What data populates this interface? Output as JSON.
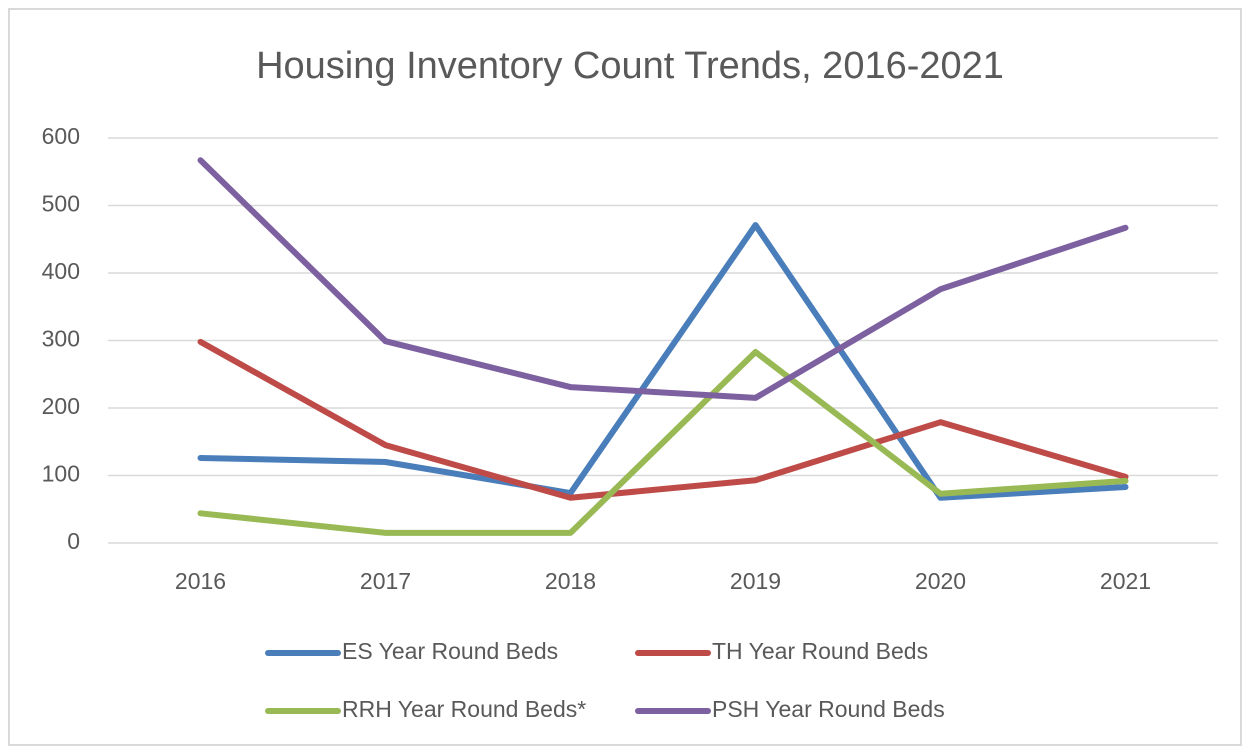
{
  "chart_data": {
    "type": "line",
    "title": "Housing Inventory Count Trends, 2016-2021",
    "categories": [
      "2016",
      "2017",
      "2018",
      "2019",
      "2020",
      "2021"
    ],
    "series": [
      {
        "name": "ES Year Round Beds",
        "color": "#4a7ebb",
        "values": [
          126,
          120,
          74,
          471,
          67,
          83
        ]
      },
      {
        "name": "TH Year Round Beds",
        "color": "#be4b48",
        "values": [
          298,
          145,
          67,
          93,
          179,
          98
        ]
      },
      {
        "name": "RRH Year Round Beds*",
        "color": "#98b954",
        "values": [
          44,
          15,
          15,
          283,
          73,
          92
        ]
      },
      {
        "name": "PSH Year Round Beds",
        "color": "#7d60a0",
        "values": [
          567,
          299,
          231,
          215,
          376,
          467
        ]
      }
    ],
    "ylim": [
      0,
      600
    ],
    "yticks": [
      0,
      100,
      200,
      300,
      400,
      500,
      600
    ],
    "grid": true,
    "legend": "bottom"
  }
}
